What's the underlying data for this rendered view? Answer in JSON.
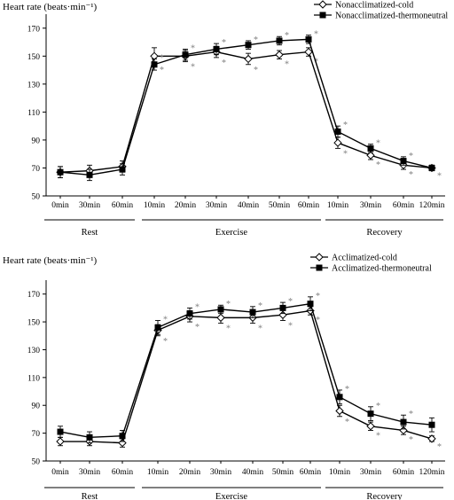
{
  "chart_data": [
    {
      "type": "line",
      "ylabel": "Heart rate (beats·min⁻¹)",
      "ylim": [
        50,
        180
      ],
      "yticks": [
        50,
        70,
        90,
        110,
        130,
        150,
        170
      ],
      "categories": [
        "0min",
        "30min",
        "60min",
        "10min",
        "20min",
        "30min",
        "40min",
        "50min",
        "60min",
        "10min",
        "30min",
        "60min",
        "120min"
      ],
      "phases": [
        {
          "label": "Rest",
          "start": 0,
          "end": 2
        },
        {
          "label": "Exercise",
          "start": 3,
          "end": 8
        },
        {
          "label": "Recovery",
          "start": 9,
          "end": 12
        }
      ],
      "legend_position": "top-right",
      "series": [
        {
          "name": "Nonacclimatized-cold",
          "marker": "open-diamond",
          "values": [
            67,
            68,
            71,
            150,
            150,
            153,
            148,
            151,
            153,
            88,
            79,
            72,
            70
          ],
          "errors": [
            4,
            4,
            4,
            6,
            4,
            4,
            4,
            3,
            3,
            4,
            3,
            3,
            2
          ],
          "sig": [
            false,
            false,
            false,
            true,
            true,
            true,
            true,
            true,
            true,
            true,
            true,
            true,
            true
          ]
        },
        {
          "name": "Nonacclimatized-thermoneutral",
          "marker": "filled-square",
          "values": [
            67,
            65,
            69,
            144,
            151,
            155,
            158,
            161,
            162,
            96,
            84,
            75,
            70
          ],
          "errors": [
            4,
            4,
            4,
            4,
            4,
            4,
            3,
            3,
            3,
            4,
            3,
            3,
            2
          ],
          "sig": [
            false,
            false,
            false,
            true,
            true,
            true,
            true,
            true,
            true,
            true,
            true,
            true,
            false
          ]
        }
      ]
    },
    {
      "type": "line",
      "ylabel": "Heart rate (beats·min⁻¹)",
      "ylim": [
        50,
        180
      ],
      "yticks": [
        50,
        70,
        90,
        110,
        130,
        150,
        170
      ],
      "categories": [
        "0min",
        "30min",
        "60min",
        "10min",
        "20min",
        "30min",
        "40min",
        "50min",
        "60min",
        "10min",
        "30min",
        "60min",
        "120min"
      ],
      "phases": [
        {
          "label": "Rest",
          "start": 0,
          "end": 2
        },
        {
          "label": "Exercise",
          "start": 3,
          "end": 8
        },
        {
          "label": "Recovery",
          "start": 9,
          "end": 12
        }
      ],
      "legend_position": "top-right",
      "series": [
        {
          "name": "Acclimatized-cold",
          "marker": "open-diamond",
          "values": [
            64,
            64,
            63,
            144,
            154,
            153,
            153,
            155,
            158,
            86,
            75,
            72,
            66
          ],
          "errors": [
            3,
            3,
            3,
            4,
            4,
            4,
            4,
            4,
            3,
            4,
            3,
            3,
            2
          ],
          "sig": [
            false,
            false,
            false,
            true,
            true,
            true,
            true,
            true,
            true,
            true,
            true,
            true,
            true
          ]
        },
        {
          "name": "Acclimatized-thermoneutral",
          "marker": "filled-square",
          "values": [
            71,
            67,
            68,
            146,
            156,
            159,
            157,
            160,
            163,
            96,
            84,
            78,
            76
          ],
          "errors": [
            4,
            4,
            4,
            5,
            4,
            3,
            4,
            4,
            5,
            5,
            5,
            5,
            5
          ],
          "sig": [
            false,
            false,
            false,
            true,
            true,
            true,
            true,
            true,
            true,
            true,
            true,
            true,
            false
          ]
        }
      ]
    }
  ]
}
